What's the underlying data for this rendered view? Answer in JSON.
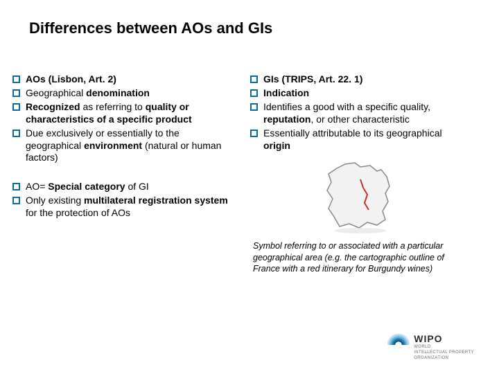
{
  "title": "Differences between AOs and GIs",
  "bullet_color": "#0a6aa8",
  "left": {
    "group1": [
      "<b>AOs (Lisbon, Art. 2)</b>",
      "Geographical <b>denomination</b>",
      "<b>Recognized</b> as referring to <b>quality or characteristics of a specific product</b>",
      "Due exclusively or essentially to the geographical <b>environment</b> (natural or human factors)"
    ],
    "group2": [
      "AO= <b>Special category</b> of GI",
      "Only existing <b>multilateral registration system</b> for the protection of AOs"
    ]
  },
  "right": {
    "group1": [
      "<b>GIs (TRIPS, Art. 22. 1)</b>",
      "<b>Indication</b>",
      "Identifies a good with a specific quality, <b>reputation</b>, or other characteristic",
      "Essentially attributable to its geographical <b>origin</b>"
    ],
    "caption": "Symbol referring to or associated with a particular geographical area (e.g. the cartographic outline of France with a red itinerary for Burgundy wines)"
  },
  "logo": {
    "main": "WIPO",
    "sub1": "WORLD",
    "sub2": "INTELLECTUAL PROPERTY",
    "sub3": "ORGANIZATION",
    "arc_colors": [
      "#0a4f8a",
      "#0a6aa8",
      "#3a8fc4",
      "#6bb0d8",
      "#9ccbe6",
      "#c7e2f1"
    ]
  }
}
